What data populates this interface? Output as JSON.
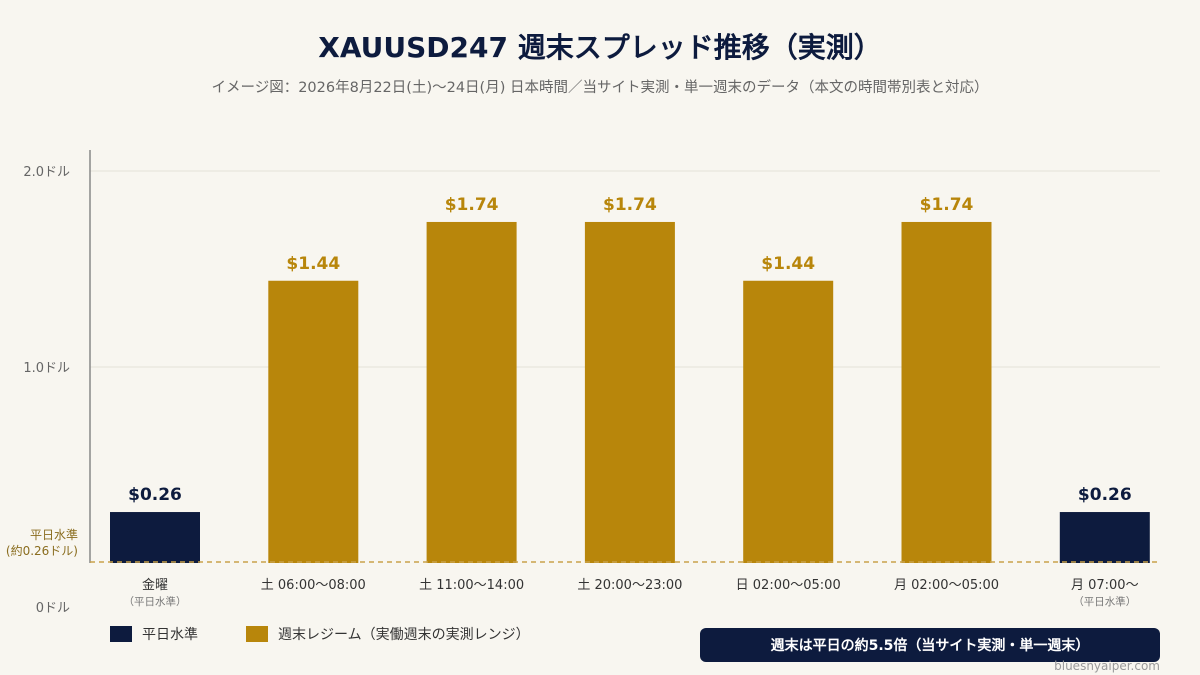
{
  "header": {
    "title": "XAUUSD247 週末スプレッド推移（実測）",
    "subtitle": "イメージ図：2026年8月22日(土)〜24日(月) 日本時間／当サイト実測・単一週末のデータ（本文の時間帯別表と対応）"
  },
  "colors": {
    "weekday": "#0d1b3e",
    "weekend": "#b8860b",
    "baseline": "#c9a24a",
    "grid": "#e4e1d8",
    "axis": "#888888"
  },
  "chart_data": {
    "type": "bar",
    "categories": [
      "金曜",
      "土 06:00〜08:00",
      "土 11:00〜14:00",
      "土 20:00〜23:00",
      "日 02:00〜05:00",
      "月 02:00〜05:00",
      "月 07:00〜"
    ],
    "sublabels": [
      "（平日水準）",
      "",
      "",
      "",
      "",
      "",
      "（平日水準）"
    ],
    "values": [
      0.26,
      1.44,
      1.74,
      1.74,
      1.44,
      1.74,
      0.26
    ],
    "value_labels": [
      "$0.26",
      "$1.44",
      "$1.74",
      "$1.74",
      "$1.44",
      "$1.74",
      "$0.26"
    ],
    "groups": [
      "weekday",
      "weekend",
      "weekend",
      "weekend",
      "weekend",
      "weekend",
      "weekday"
    ],
    "ylim": [
      0,
      2.0
    ],
    "yticks": [
      {
        "value": 2.0,
        "label": "2.0ドル"
      },
      {
        "value": 1.0,
        "label": "1.0ドル"
      },
      {
        "value": 0,
        "label": "0ドル"
      }
    ],
    "baseline": {
      "value": 0.26,
      "label_line1": "平日水準",
      "label_line2": "(約0.26ドル)"
    },
    "grid": true,
    "legend_position": "bottom-left"
  },
  "legend": {
    "weekday": "平日水準",
    "weekend": "週末レジーム（実働週末の実測レンジ）"
  },
  "note": "週末は平日の約5.5倍（当サイト実測・単一週末）",
  "credit": "bluesnyaiper.com"
}
